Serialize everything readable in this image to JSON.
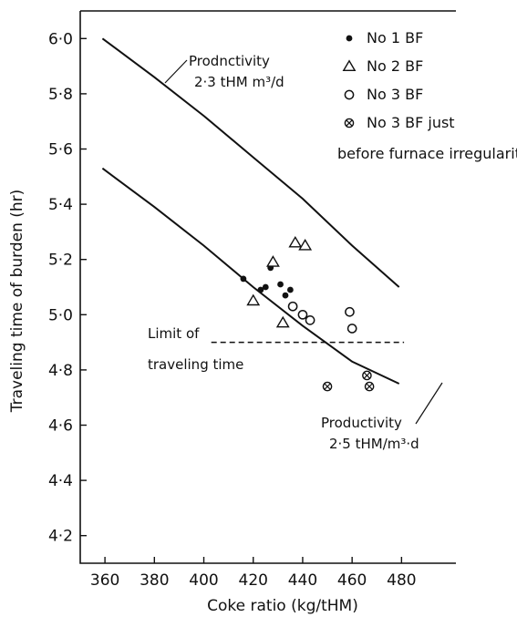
{
  "chart_data": {
    "type": "scatter",
    "xlabel": "Coke ratio (kg/tHM)",
    "ylabel": "Traveling time of burden (hr)",
    "xlim": [
      350,
      502
    ],
    "ylim": [
      4.1,
      6.1
    ],
    "xticks": [
      360,
      380,
      400,
      420,
      440,
      460,
      480
    ],
    "xtick_labels": [
      "360",
      "380",
      "400",
      "420",
      "440",
      "460",
      "480"
    ],
    "yticks": [
      4.2,
      4.4,
      4.6,
      4.8,
      5.0,
      5.2,
      5.4,
      5.6,
      5.8,
      6.0
    ],
    "ytick_labels": [
      "4·2",
      "4·4",
      "4·6",
      "4·8",
      "5·0",
      "5·2",
      "5·4",
      "5·6",
      "5·8",
      "6·0"
    ],
    "grid": false,
    "legend_position": "top-right",
    "legend_note": "before furnace irregularities",
    "series": [
      {
        "name": "No 1 BF",
        "marker": "filled-circle",
        "points": [
          [
            416,
            5.13
          ],
          [
            423,
            5.09
          ],
          [
            425,
            5.1
          ],
          [
            427,
            5.17
          ],
          [
            431,
            5.11
          ],
          [
            433,
            5.07
          ],
          [
            435,
            5.09
          ]
        ]
      },
      {
        "name": "No 2 BF",
        "marker": "triangle",
        "points": [
          [
            420,
            5.05
          ],
          [
            428,
            5.19
          ],
          [
            432,
            4.97
          ],
          [
            437,
            5.26
          ],
          [
            441,
            5.25
          ]
        ]
      },
      {
        "name": "No 3 BF",
        "marker": "open-circle",
        "points": [
          [
            436,
            5.03
          ],
          [
            440,
            5.0
          ],
          [
            443,
            4.98
          ],
          [
            459,
            5.01
          ],
          [
            460,
            4.95
          ]
        ]
      },
      {
        "name": "No 3 BF just",
        "marker": "crossed-circle",
        "points": [
          [
            450,
            4.74
          ],
          [
            466,
            4.78
          ],
          [
            467,
            4.74
          ]
        ]
      }
    ],
    "lines": [
      {
        "label": "Prodnctivity",
        "label_value": "2·3 tHM m³/d",
        "points": [
          [
            359,
            6.0
          ],
          [
            380,
            5.86
          ],
          [
            400,
            5.72
          ],
          [
            420,
            5.57
          ],
          [
            440,
            5.42
          ],
          [
            460,
            5.25
          ],
          [
            479,
            5.1
          ]
        ]
      },
      {
        "label": "Productivity",
        "label_value": "2·5 tHM/m³·d",
        "points": [
          [
            359,
            5.53
          ],
          [
            380,
            5.39
          ],
          [
            400,
            5.25
          ],
          [
            420,
            5.1
          ],
          [
            440,
            4.96
          ],
          [
            460,
            4.83
          ],
          [
            479,
            4.75
          ]
        ]
      },
      {
        "label": "Limit of",
        "label_value": "traveling time",
        "dashed": true,
        "points": [
          [
            403,
            4.9
          ],
          [
            481,
            4.9
          ]
        ]
      }
    ]
  }
}
